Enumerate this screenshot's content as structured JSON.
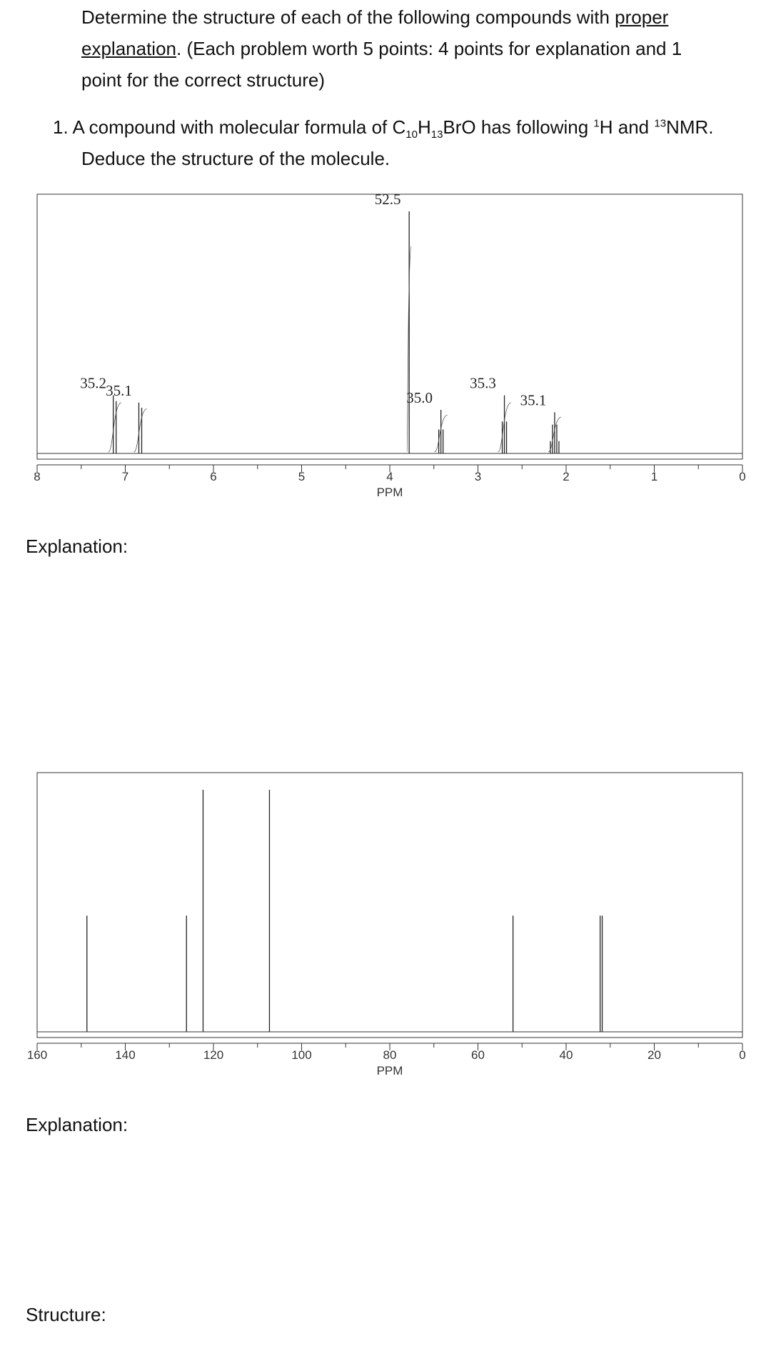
{
  "intro": {
    "part1": "Determine the structure of each of the following compounds with ",
    "underlined": "proper explanation",
    "part2": ". (Each problem worth 5 points: 4 points for explanation and 1 point for the correct structure)"
  },
  "question": {
    "number": "1.",
    "text_a": "A compound with molecular formula of C",
    "sub_c": "10",
    "text_h": "H",
    "sub_h": "13",
    "text_b": "BrO has following ",
    "sup_1": "1",
    "text_c": "H and ",
    "sup_13": "13",
    "text_d": "NMR.",
    "line2": "Deduce the structure of the molecule."
  },
  "labels": {
    "explanation1": "Explanation:",
    "explanation2": "Explanation:",
    "structure": "Structure:"
  },
  "chart_data": [
    {
      "type": "line",
      "xlabel": "PPM",
      "xlim": [
        8,
        0
      ],
      "ticks": [
        "8",
        "7",
        "6",
        "5",
        "4",
        "3",
        "2",
        "1",
        "0"
      ],
      "peaks": [
        {
          "ppm": 7.12,
          "rel_height": 0.24,
          "label": "35.2",
          "multiplet": "d"
        },
        {
          "ppm": 6.83,
          "rel_height": 0.21,
          "label": "35.1",
          "multiplet": "d"
        },
        {
          "ppm": 3.78,
          "rel_height": 1.0,
          "label": "52.5",
          "multiplet": "s"
        },
        {
          "ppm": 3.42,
          "rel_height": 0.18,
          "label": "35.0",
          "multiplet": "t"
        },
        {
          "ppm": 2.7,
          "rel_height": 0.24,
          "label": "35.3",
          "multiplet": "t"
        },
        {
          "ppm": 2.13,
          "rel_height": 0.17,
          "label": "35.1",
          "multiplet": "quintet"
        }
      ]
    },
    {
      "type": "line",
      "xlabel": "PPM",
      "xlim": [
        170,
        0
      ],
      "ticks": [
        "160",
        "140",
        "120",
        "100",
        "80",
        "60",
        "40",
        "20",
        "0"
      ],
      "peaks": [
        {
          "ppm": 158.0,
          "rel_height": 0.48
        },
        {
          "ppm": 134.0,
          "rel_height": 0.48
        },
        {
          "ppm": 130.0,
          "rel_height": 1.0
        },
        {
          "ppm": 114.0,
          "rel_height": 1.0
        },
        {
          "ppm": 55.3,
          "rel_height": 0.48
        },
        {
          "ppm": 34.3,
          "rel_height": 0.48
        },
        {
          "ppm": 33.8,
          "rel_height": 0.48
        }
      ]
    }
  ]
}
